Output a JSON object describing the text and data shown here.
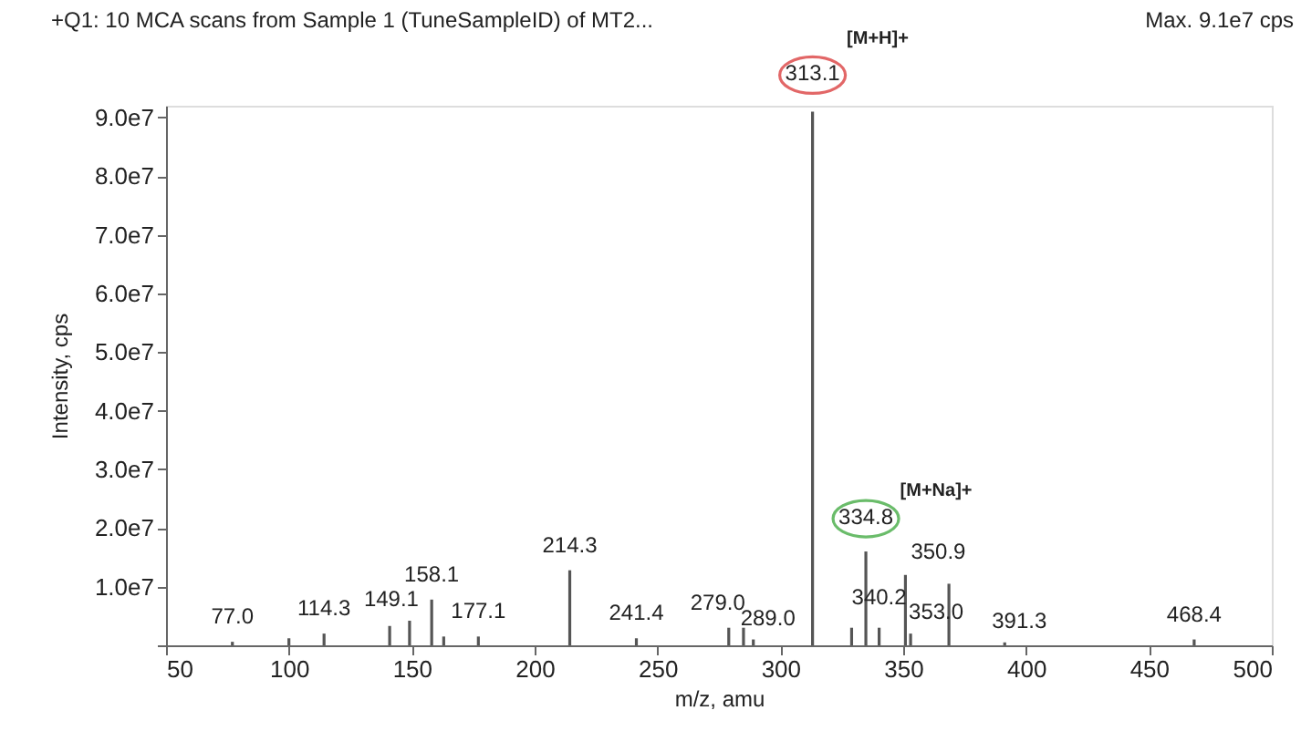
{
  "chart_data": {
    "type": "bar",
    "title": "+Q1: 10 MCA scans from Sample 1 (TuneSampleID) of MT2...",
    "xlabel": "m/z, amu",
    "ylabel": "Intensity, cps",
    "x": [
      77.0,
      100.0,
      114.3,
      141.0,
      149.1,
      158.1,
      163.0,
      177.1,
      214.3,
      241.4,
      279.0,
      285.0,
      289.0,
      313.1,
      329.0,
      334.8,
      340.2,
      350.9,
      353.0,
      368.6,
      391.3,
      468.4
    ],
    "series": [
      {
        "color": "#555555",
        "values": [
          600000,
          1200000,
          2000000,
          3300000,
          4200000,
          7800000,
          1500000,
          1500000,
          12800000,
          1200000,
          3000000,
          3000000,
          1000000,
          91000000,
          3000000,
          16000000,
          3000000,
          12000000,
          2000000,
          10500000,
          500000,
          1000000
        ]
      }
    ],
    "xlim": [
      50,
      500
    ],
    "xticks": [
      50,
      100,
      150,
      200,
      250,
      300,
      350,
      400,
      450,
      500
    ],
    "ylim": [
      0,
      92000000
    ],
    "yticks": [
      {
        "value": 0,
        "label": null
      },
      {
        "value": 10000000,
        "label": "1.0e7"
      },
      {
        "value": 20000000,
        "label": "2.0e7"
      },
      {
        "value": 30000000,
        "label": "3.0e7"
      },
      {
        "value": 40000000,
        "label": "4.0e7"
      },
      {
        "value": 50000000,
        "label": "5.0e7"
      },
      {
        "value": 60000000,
        "label": "6.0e7"
      },
      {
        "value": 70000000,
        "label": "7.0e7"
      },
      {
        "value": 80000000,
        "label": "8.0e7"
      },
      {
        "value": 90000000,
        "label": "9.0e7"
      }
    ],
    "grid": false,
    "annotations": [
      {
        "text": "313.1",
        "x": 313.1,
        "y": 91000000
      },
      {
        "text": "334.8",
        "x": 334.8,
        "y": 16000000
      },
      "[M+H]+",
      "[M+Na]+",
      {
        "text": "77.0",
        "x": 77.0,
        "y": 600000
      },
      {
        "text": "114.3",
        "x": 114.3,
        "y": 2000000
      },
      {
        "text": "149.1",
        "x": 149.1,
        "y": 4200000
      },
      {
        "text": "158.1",
        "x": 158.1,
        "y": 7800000
      },
      {
        "text": "177.1",
        "x": 177.1,
        "y": 1500000
      },
      {
        "text": "214.3",
        "x": 214.3,
        "y": 12800000
      },
      {
        "text": "241.4",
        "x": 241.4,
        "y": 1200000
      },
      {
        "text": "279.0",
        "x": 279.0,
        "y": 3000000
      },
      {
        "text": "289.0",
        "x": 289.0,
        "y": 1000000
      },
      {
        "text": "340.2",
        "x": 340.2,
        "y": 3000000
      },
      {
        "text": "350.9",
        "x": 350.9,
        "y": 12000000
      },
      {
        "text": "353.0",
        "x": 353.0,
        "y": 2000000
      },
      {
        "text": "391.3",
        "x": 391.3,
        "y": 500000
      },
      {
        "text": "468.4",
        "x": 468.4,
        "y": 1000000
      },
      "Max. 9.1e7 cps"
    ]
  }
}
